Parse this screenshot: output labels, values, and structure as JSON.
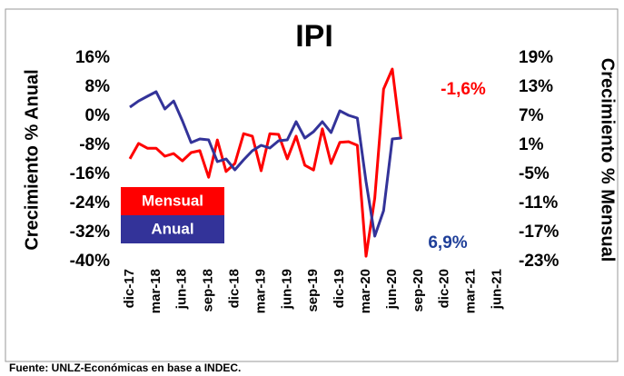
{
  "chart_data": {
    "type": "line",
    "title": "IPI",
    "y_label": "Crecimiento % Anual",
    "y2_label": "Crecimiento % Mensual",
    "categories": [
      "dic-17",
      null,
      null,
      "mar-18",
      null,
      null,
      "jun-18",
      null,
      null,
      "sep-18",
      null,
      null,
      "dic-18",
      null,
      null,
      "mar-19",
      null,
      null,
      "jun-19",
      null,
      null,
      "sep-19",
      null,
      null,
      "dic-19",
      null,
      null,
      "mar-20",
      null,
      null,
      "jun-20",
      null,
      null,
      "sep-20",
      null,
      null,
      "dic-20",
      null,
      null,
      "mar-21",
      null,
      null,
      "jun-21"
    ],
    "series": [
      {
        "name": "Mensual",
        "color": "#ff0000",
        "axis": "y2",
        "values": [
          -1.8,
          1.4,
          0.4,
          0.4,
          -1.25,
          -0.7,
          -2.2,
          -0.5,
          -0.1,
          -5.6,
          2.1,
          -4.4,
          -2.75,
          3.4,
          2.9,
          -4.25,
          3.4,
          3.25,
          -1.8,
          2.9,
          -3.1,
          -4.1,
          4.4,
          -2.75,
          1.6,
          1.75,
          1,
          -21.9,
          -9.9,
          12.6,
          16.75,
          2.3,
          null,
          null,
          null,
          null,
          null,
          null,
          null,
          null,
          null,
          null,
          null
        ]
      },
      {
        "name": "Anual",
        "color": "#333399",
        "values": [
          2.5,
          4.2,
          5.5,
          6.75,
          2,
          4.2,
          -1.25,
          -7.25,
          -6.25,
          -6.5,
          -12.5,
          -11.75,
          -14.75,
          -12,
          -9.5,
          -8,
          -8.75,
          -6.75,
          -6.5,
          -1.5,
          -6,
          -4.25,
          -1.5,
          -4.5,
          1.5,
          0.25,
          -0.5,
          -18,
          -33,
          -26,
          -6.25,
          -6,
          null,
          null,
          null,
          null,
          null,
          null,
          null,
          null,
          null,
          null,
          null
        ]
      }
    ],
    "ylim": [
      -40,
      16
    ],
    "yticks": [
      {
        "value": -40,
        "label": "-40%"
      },
      {
        "value": -32,
        "label": "-32%"
      },
      {
        "value": -24,
        "label": "-24%"
      },
      {
        "value": -16,
        "label": "-16%"
      },
      {
        "value": -8,
        "label": "-8%"
      },
      {
        "value": 0,
        "label": "0%"
      },
      {
        "value": 8,
        "label": "8%"
      },
      {
        "value": 16,
        "label": "16%"
      }
    ],
    "y2lim": [
      -23,
      19
    ],
    "y2ticks": [
      {
        "value": -23,
        "label": "-23%"
      },
      {
        "value": -17,
        "label": "-17%"
      },
      {
        "value": -11,
        "label": "-11%"
      },
      {
        "value": -5,
        "label": "-5%"
      },
      {
        "value": 1,
        "label": "1%"
      },
      {
        "value": 7,
        "label": "7%"
      },
      {
        "value": 13,
        "label": "13%"
      },
      {
        "value": 19,
        "label": "19%"
      }
    ],
    "annotations": [
      "-1,6%",
      "6,9%"
    ],
    "source": "Fuente: UNLZ-Económicas en base a INDEC."
  }
}
